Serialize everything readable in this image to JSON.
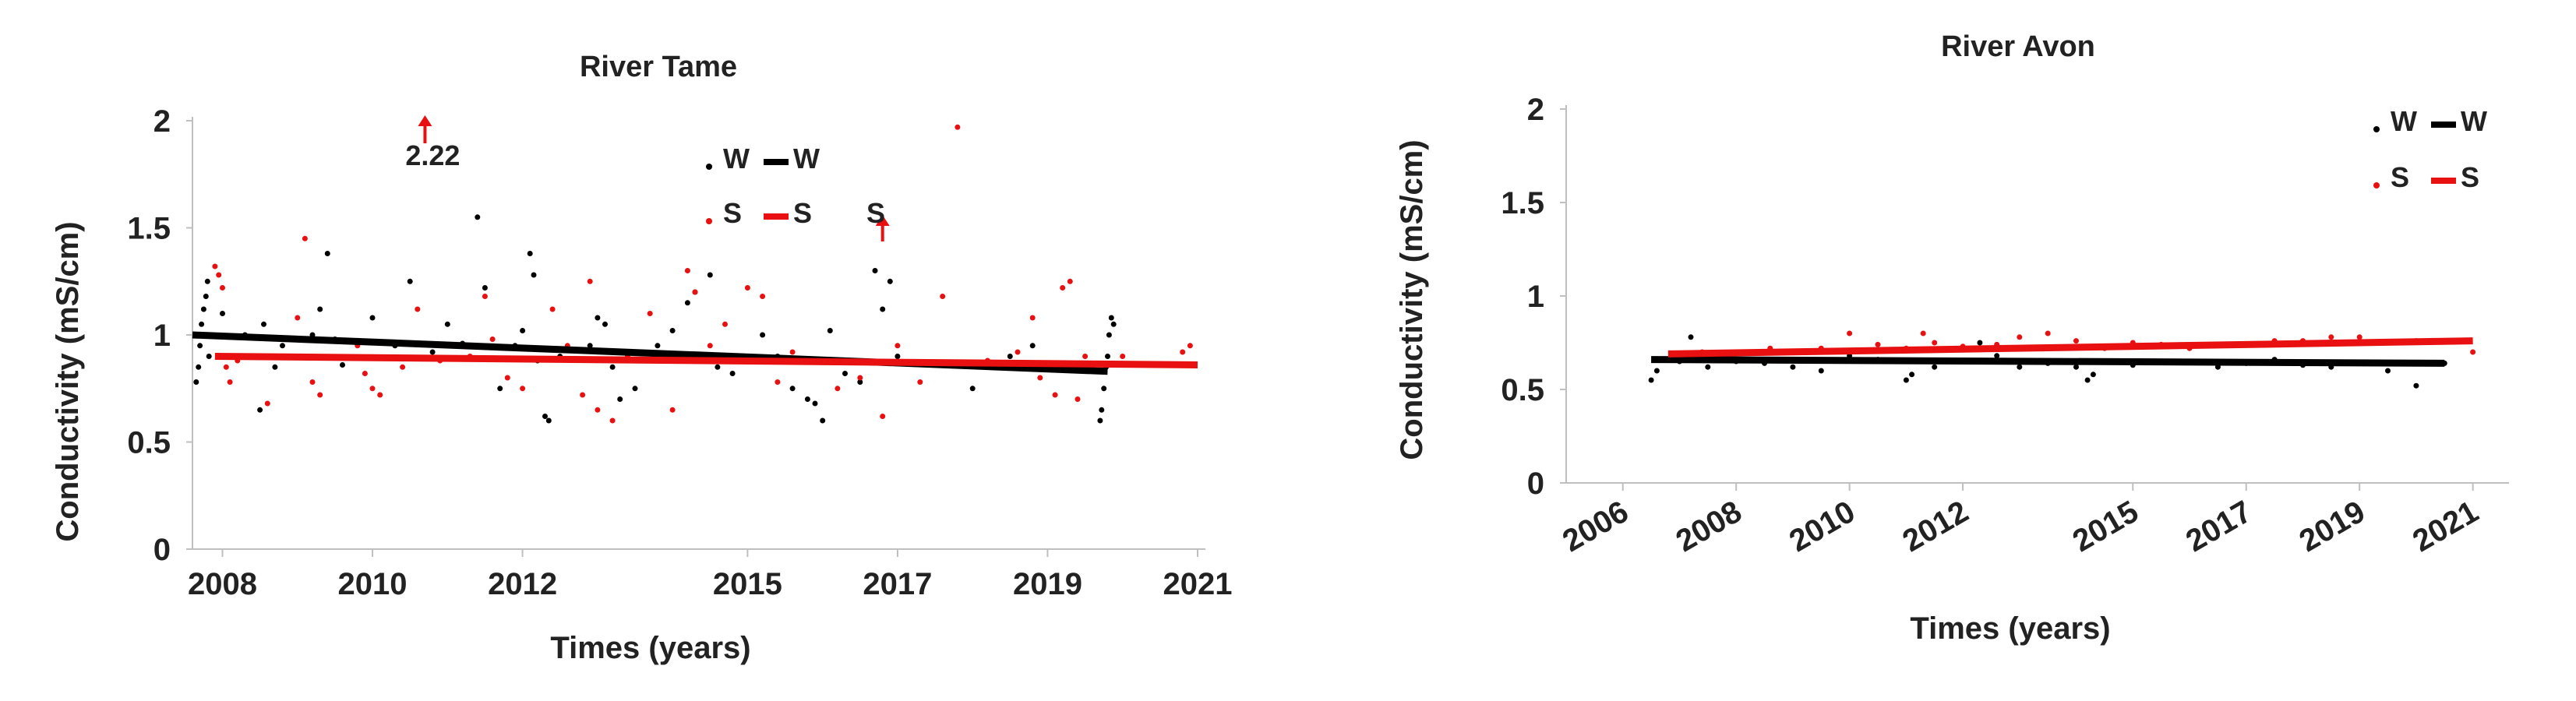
{
  "chart_data": [
    {
      "type": "scatter",
      "title": "River Tame",
      "xlabel": "Times (years)",
      "ylabel": "Conductivity (mS/cm)",
      "xlim": [
        2007.6,
        2021
      ],
      "ylim": [
        0,
        2
      ],
      "x_ticks": [
        "2008",
        "2010",
        "2012",
        "2015",
        "2017",
        "2019",
        "2021"
      ],
      "y_ticks": [
        "0",
        "0.5",
        "1",
        "1.5",
        "2"
      ],
      "outlier_annotation": {
        "x": 2010.7,
        "label": "2.22"
      },
      "outlier_arrow_s": {
        "x": 2016.8
      },
      "legend": [
        {
          "marker": "dot",
          "color": "#000000",
          "label": "W"
        },
        {
          "marker": "line",
          "color": "#000000",
          "label": "W"
        },
        {
          "marker": "dot",
          "color": "#e81010",
          "label": "S"
        },
        {
          "marker": "line",
          "color": "#e81010",
          "label": "S"
        },
        {
          "marker": "arrow",
          "color": "#e81010",
          "label": "S"
        }
      ],
      "series": [
        {
          "name": "W",
          "kind": "points",
          "color": "#000000",
          "points": [
            [
              2007.65,
              0.78
            ],
            [
              2007.68,
              0.85
            ],
            [
              2007.7,
              0.95
            ],
            [
              2007.72,
              1.05
            ],
            [
              2007.75,
              1.12
            ],
            [
              2007.78,
              1.18
            ],
            [
              2007.8,
              1.25
            ],
            [
              2007.82,
              0.9
            ],
            [
              2007.85,
              1.0
            ],
            [
              2008.0,
              1.1
            ],
            [
              2008.3,
              1.0
            ],
            [
              2008.5,
              0.65
            ],
            [
              2008.55,
              1.05
            ],
            [
              2008.7,
              0.85
            ],
            [
              2008.8,
              0.95
            ],
            [
              2009.2,
              1.0
            ],
            [
              2009.3,
              1.12
            ],
            [
              2009.4,
              1.38
            ],
            [
              2009.5,
              0.98
            ],
            [
              2009.6,
              0.86
            ],
            [
              2010.0,
              1.08
            ],
            [
              2010.3,
              0.95
            ],
            [
              2010.5,
              1.25
            ],
            [
              2010.8,
              0.92
            ],
            [
              2011.0,
              1.05
            ],
            [
              2011.2,
              0.96
            ],
            [
              2011.4,
              1.55
            ],
            [
              2011.5,
              1.22
            ],
            [
              2011.7,
              0.75
            ],
            [
              2011.9,
              0.95
            ],
            [
              2012.0,
              1.02
            ],
            [
              2012.1,
              1.38
            ],
            [
              2012.15,
              1.28
            ],
            [
              2012.2,
              0.88
            ],
            [
              2012.3,
              0.62
            ],
            [
              2012.35,
              0.6
            ],
            [
              2012.5,
              0.9
            ],
            [
              2012.9,
              0.95
            ],
            [
              2013.0,
              1.08
            ],
            [
              2013.1,
              1.05
            ],
            [
              2013.2,
              0.85
            ],
            [
              2013.3,
              0.7
            ],
            [
              2013.5,
              0.75
            ],
            [
              2013.8,
              0.95
            ],
            [
              2014.0,
              1.02
            ],
            [
              2014.2,
              1.15
            ],
            [
              2014.3,
              1.2
            ],
            [
              2014.5,
              1.28
            ],
            [
              2014.6,
              0.85
            ],
            [
              2014.8,
              0.82
            ],
            [
              2015.2,
              1.0
            ],
            [
              2015.4,
              0.9
            ],
            [
              2015.6,
              0.75
            ],
            [
              2015.8,
              0.7
            ],
            [
              2015.9,
              0.68
            ],
            [
              2016.0,
              0.6
            ],
            [
              2016.1,
              1.02
            ],
            [
              2016.3,
              0.82
            ],
            [
              2016.5,
              0.78
            ],
            [
              2016.7,
              1.3
            ],
            [
              2016.8,
              1.12
            ],
            [
              2016.9,
              1.25
            ],
            [
              2017.0,
              0.9
            ],
            [
              2018.0,
              0.75
            ],
            [
              2018.5,
              0.9
            ],
            [
              2018.8,
              0.95
            ],
            [
              2019.0,
              0.85
            ],
            [
              2019.7,
              0.6
            ],
            [
              2019.72,
              0.65
            ],
            [
              2019.75,
              0.75
            ],
            [
              2019.78,
              0.85
            ],
            [
              2019.8,
              0.9
            ],
            [
              2019.82,
              1.0
            ],
            [
              2019.85,
              1.08
            ],
            [
              2019.88,
              1.05
            ]
          ]
        },
        {
          "name": "S",
          "kind": "points",
          "color": "#e81010",
          "points": [
            [
              2007.9,
              1.32
            ],
            [
              2007.95,
              1.28
            ],
            [
              2008.0,
              1.22
            ],
            [
              2008.05,
              0.85
            ],
            [
              2008.1,
              0.78
            ],
            [
              2008.2,
              0.88
            ],
            [
              2008.6,
              0.68
            ],
            [
              2009.0,
              1.08
            ],
            [
              2009.1,
              1.45
            ],
            [
              2009.2,
              0.78
            ],
            [
              2009.3,
              0.72
            ],
            [
              2009.8,
              0.95
            ],
            [
              2009.9,
              0.82
            ],
            [
              2010.0,
              0.75
            ],
            [
              2010.1,
              0.72
            ],
            [
              2010.4,
              0.85
            ],
            [
              2010.6,
              1.12
            ],
            [
              2010.9,
              0.88
            ],
            [
              2011.3,
              0.9
            ],
            [
              2011.5,
              1.18
            ],
            [
              2011.6,
              0.98
            ],
            [
              2011.8,
              0.8
            ],
            [
              2012.0,
              0.75
            ],
            [
              2012.4,
              1.12
            ],
            [
              2012.6,
              0.95
            ],
            [
              2012.8,
              0.72
            ],
            [
              2012.9,
              1.25
            ],
            [
              2013.0,
              0.65
            ],
            [
              2013.2,
              0.6
            ],
            [
              2013.4,
              0.9
            ],
            [
              2013.6,
              0.88
            ],
            [
              2013.7,
              1.1
            ],
            [
              2014.0,
              0.65
            ],
            [
              2014.2,
              1.3
            ],
            [
              2014.3,
              1.2
            ],
            [
              2014.5,
              0.95
            ],
            [
              2014.7,
              1.05
            ],
            [
              2015.0,
              1.22
            ],
            [
              2015.2,
              1.18
            ],
            [
              2015.4,
              0.78
            ],
            [
              2015.6,
              0.92
            ],
            [
              2015.8,
              0.88
            ],
            [
              2016.2,
              0.75
            ],
            [
              2016.5,
              0.8
            ],
            [
              2016.8,
              0.62
            ],
            [
              2017.0,
              0.95
            ],
            [
              2017.3,
              0.78
            ],
            [
              2017.6,
              1.18
            ],
            [
              2017.8,
              1.97
            ],
            [
              2018.2,
              0.88
            ],
            [
              2018.6,
              0.92
            ],
            [
              2018.8,
              1.08
            ],
            [
              2018.9,
              0.8
            ],
            [
              2019.1,
              0.72
            ],
            [
              2019.2,
              1.22
            ],
            [
              2019.3,
              1.25
            ],
            [
              2019.4,
              0.7
            ],
            [
              2019.5,
              0.9
            ],
            [
              2020.0,
              0.9
            ],
            [
              2020.8,
              0.92
            ],
            [
              2020.9,
              0.95
            ]
          ]
        },
        {
          "name": "W",
          "kind": "line",
          "color": "#000000",
          "from": [
            2007.6,
            1.0
          ],
          "to": [
            2019.8,
            0.83
          ]
        },
        {
          "name": "S",
          "kind": "line",
          "color": "#e81010",
          "from": [
            2007.9,
            0.9
          ],
          "to": [
            2021.0,
            0.86
          ]
        }
      ]
    },
    {
      "type": "scatter",
      "title": "River Avon",
      "xlabel": "Times (years)",
      "ylabel": "Conductivity (mS/cm)",
      "xlim": [
        2005.0,
        2021.5
      ],
      "ylim": [
        0,
        2
      ],
      "x_ticks": [
        "2006",
        "2008",
        "2010",
        "2012",
        "2015",
        "2017",
        "2019",
        "2021"
      ],
      "y_ticks": [
        "0",
        "0.5",
        "1",
        "1.5",
        "2"
      ],
      "legend": [
        {
          "marker": "dot",
          "color": "#000000",
          "label": "W"
        },
        {
          "marker": "line",
          "color": "#000000",
          "label": "W"
        },
        {
          "marker": "dot",
          "color": "#e81010",
          "label": "S"
        },
        {
          "marker": "line",
          "color": "#e81010",
          "label": "S"
        }
      ],
      "series": [
        {
          "name": "W",
          "kind": "points",
          "color": "#000000",
          "points": [
            [
              2006.5,
              0.55
            ],
            [
              2006.6,
              0.6
            ],
            [
              2007.0,
              0.65
            ],
            [
              2007.2,
              0.78
            ],
            [
              2007.3,
              0.68
            ],
            [
              2007.5,
              0.62
            ],
            [
              2008.0,
              0.65
            ],
            [
              2008.5,
              0.64
            ],
            [
              2009.0,
              0.62
            ],
            [
              2009.5,
              0.6
            ],
            [
              2010.0,
              0.68
            ],
            [
              2010.5,
              0.66
            ],
            [
              2011.0,
              0.55
            ],
            [
              2011.1,
              0.58
            ],
            [
              2011.5,
              0.62
            ],
            [
              2012.0,
              0.65
            ],
            [
              2012.3,
              0.75
            ],
            [
              2012.6,
              0.68
            ],
            [
              2013.0,
              0.62
            ],
            [
              2013.5,
              0.64
            ],
            [
              2014.0,
              0.62
            ],
            [
              2014.2,
              0.55
            ],
            [
              2014.3,
              0.58
            ],
            [
              2015.0,
              0.63
            ],
            [
              2016.0,
              0.65
            ],
            [
              2016.5,
              0.62
            ],
            [
              2017.0,
              0.64
            ],
            [
              2017.5,
              0.66
            ],
            [
              2018.0,
              0.63
            ],
            [
              2018.5,
              0.62
            ],
            [
              2019.0,
              0.64
            ],
            [
              2019.5,
              0.6
            ],
            [
              2020.0,
              0.52
            ],
            [
              2020.5,
              0.64
            ]
          ]
        },
        {
          "name": "S",
          "kind": "points",
          "color": "#e81010",
          "points": [
            [
              2007.0,
              0.68
            ],
            [
              2007.4,
              0.7
            ],
            [
              2008.0,
              0.7
            ],
            [
              2008.6,
              0.72
            ],
            [
              2009.0,
              0.7
            ],
            [
              2009.5,
              0.72
            ],
            [
              2010.0,
              0.8
            ],
            [
              2010.5,
              0.74
            ],
            [
              2011.0,
              0.72
            ],
            [
              2011.3,
              0.8
            ],
            [
              2011.5,
              0.75
            ],
            [
              2012.0,
              0.73
            ],
            [
              2012.6,
              0.74
            ],
            [
              2013.0,
              0.78
            ],
            [
              2013.5,
              0.8
            ],
            [
              2014.0,
              0.76
            ],
            [
              2014.5,
              0.72
            ],
            [
              2015.0,
              0.75
            ],
            [
              2015.5,
              0.74
            ],
            [
              2016.0,
              0.72
            ],
            [
              2016.5,
              0.74
            ],
            [
              2017.0,
              0.74
            ],
            [
              2017.5,
              0.76
            ],
            [
              2018.0,
              0.76
            ],
            [
              2018.5,
              0.78
            ],
            [
              2019.0,
              0.78
            ],
            [
              2020.0,
              0.76
            ],
            [
              2021.0,
              0.7
            ]
          ]
        },
        {
          "name": "W",
          "kind": "line",
          "color": "#000000",
          "from": [
            2006.5,
            0.66
          ],
          "to": [
            2020.5,
            0.64
          ]
        },
        {
          "name": "S",
          "kind": "line",
          "color": "#e81010",
          "from": [
            2006.8,
            0.69
          ],
          "to": [
            2021.0,
            0.76
          ]
        }
      ]
    }
  ]
}
